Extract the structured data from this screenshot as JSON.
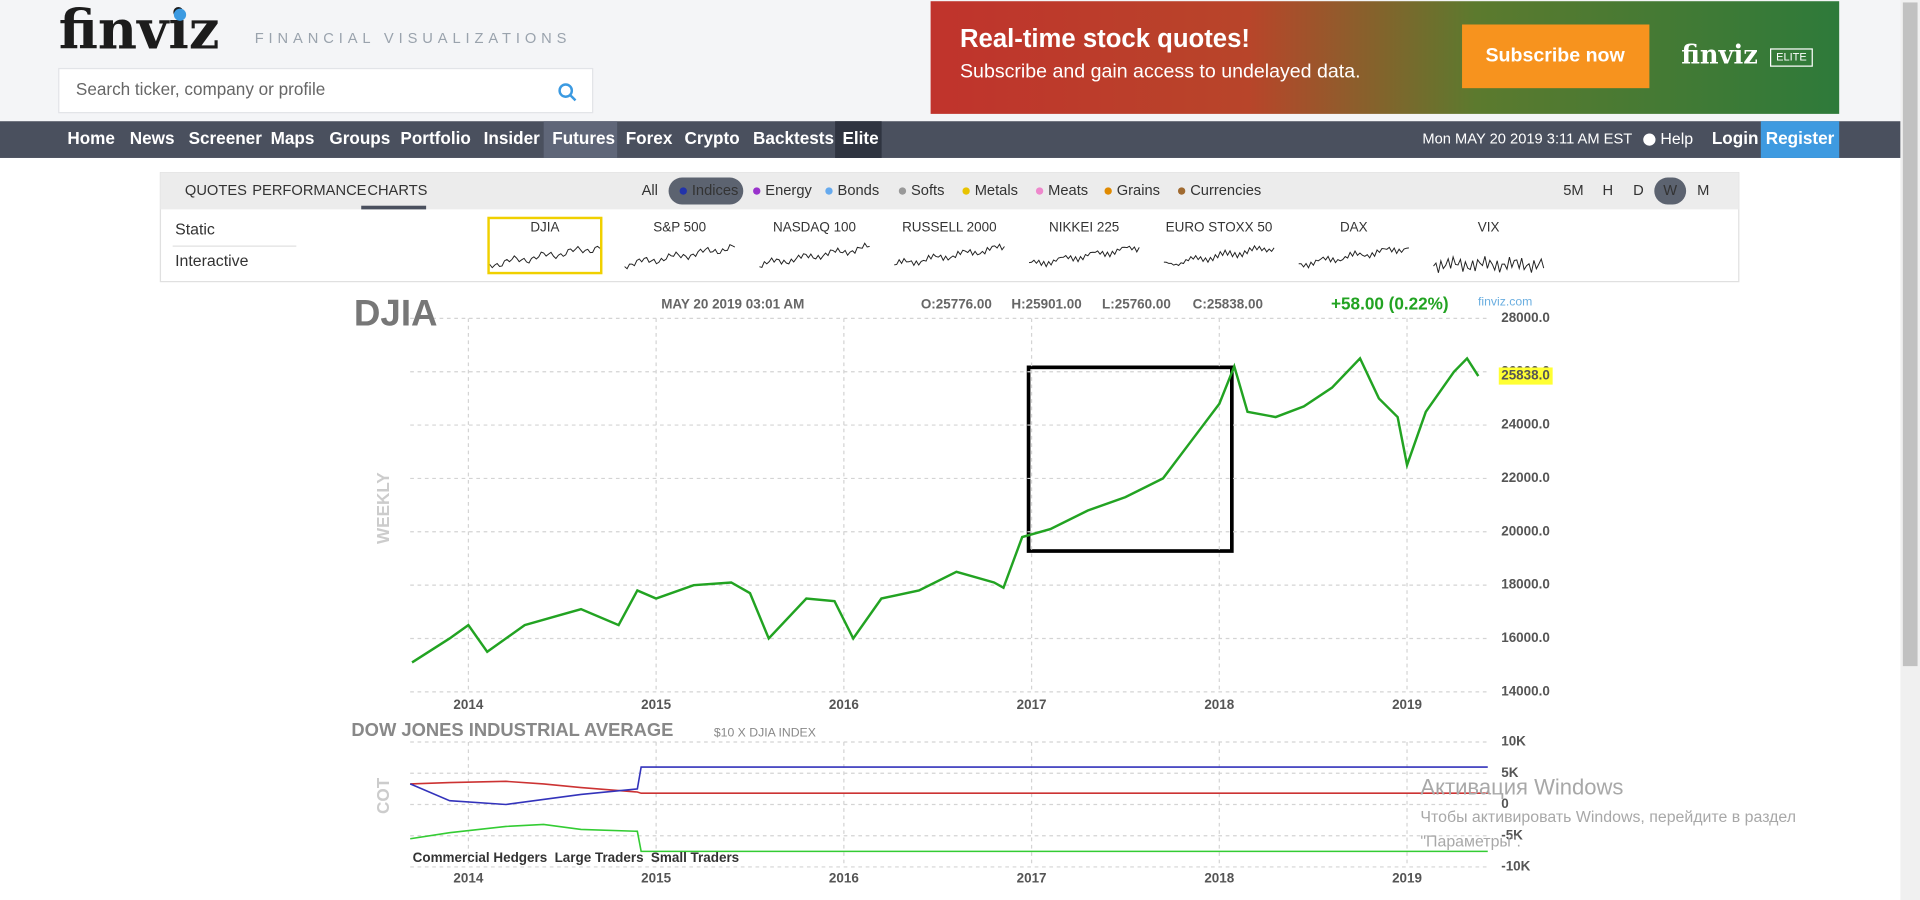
{
  "header": {
    "logo": "finviz",
    "tagline": "FINANCIAL VISUALIZATIONS",
    "search_placeholder": "Search ticker, company or profile",
    "ad": {
      "headline": "Real-time stock quotes!",
      "subline": "Subscribe and gain access to undelayed data.",
      "button": "Subscribe now",
      "brand": "finviz",
      "badge": "ELITE"
    }
  },
  "nav": {
    "items": [
      "Home",
      "News",
      "Screener",
      "Maps",
      "Groups",
      "Portfolio",
      "Insider",
      "Futures",
      "Forex",
      "Crypto",
      "Backtests",
      "Elite"
    ],
    "datetime": "Mon MAY 20 2019 3:11 AM EST",
    "help": "Help",
    "login": "Login",
    "register": "Register"
  },
  "tabs": {
    "views": [
      "QUOTES",
      "PERFORMANCE",
      "CHARTS"
    ],
    "groups": [
      "All",
      "Indices",
      "Energy",
      "Bonds",
      "Softs",
      "Metals",
      "Meats",
      "Grains",
      "Currencies"
    ],
    "timeframes": [
      "5M",
      "H",
      "D",
      "W",
      "M"
    ]
  },
  "side": [
    "Static",
    "Interactive"
  ],
  "thumbnails": [
    "DJIA",
    "S&P 500",
    "NASDAQ 100",
    "RUSSELL 2000",
    "NIKKEI 225",
    "EURO STOXX 50",
    "DAX",
    "VIX"
  ],
  "watermark": [
    "Активация Windows",
    "Чтобы активировать Windows, перейдите в раздел",
    "\"Параметры\"."
  ],
  "chart_data": [
    {
      "type": "line",
      "title": "DJIA",
      "timestamp": "MAY 20 2019 03:01 AM",
      "open": "O:25776.00",
      "high": "H:25901.00",
      "low": "L:25760.00",
      "close": "C:25838.00",
      "change": "+58.00 (0.22%)",
      "source": "finviz.com",
      "y_label": "WEEKLY",
      "price_tag": "25838.0",
      "color": "#22a322",
      "x": [
        2013.7,
        2013.9,
        2014.0,
        2014.1,
        2014.3,
        2014.5,
        2014.6,
        2014.8,
        2014.9,
        2015.0,
        2015.2,
        2015.4,
        2015.5,
        2015.6,
        2015.8,
        2015.95,
        2016.05,
        2016.2,
        2016.4,
        2016.6,
        2016.8,
        2016.85,
        2016.95,
        2017.1,
        2017.3,
        2017.5,
        2017.7,
        2017.85,
        2018.0,
        2018.08,
        2018.15,
        2018.3,
        2018.45,
        2018.6,
        2018.75,
        2018.85,
        2018.95,
        2019.0,
        2019.1,
        2019.25,
        2019.32,
        2019.38
      ],
      "values": [
        15100,
        16000,
        16500,
        15500,
        16500,
        16900,
        17100,
        16500,
        17800,
        17500,
        18000,
        18100,
        17700,
        16000,
        17500,
        17400,
        16000,
        17500,
        17800,
        18500,
        18100,
        17900,
        19800,
        20100,
        20800,
        21300,
        22000,
        23400,
        24800,
        26200,
        24500,
        24300,
        24700,
        25400,
        26500,
        25000,
        24300,
        22500,
        24500,
        26000,
        26500,
        25838
      ],
      "xlim": [
        2013.69,
        2019.43
      ],
      "xticks": [
        2014,
        2015,
        2016,
        2017,
        2018,
        2019
      ],
      "ylim": [
        14000,
        28000
      ],
      "yticks": [
        {
          "value": 14000,
          "label": "14000.0"
        },
        {
          "value": 16000,
          "label": "16000.0"
        },
        {
          "value": 18000,
          "label": "18000.0"
        },
        {
          "value": 20000,
          "label": "20000.0"
        },
        {
          "value": 22000,
          "label": "22000.0"
        },
        {
          "value": 24000,
          "label": "24000.0"
        },
        {
          "value": 26000,
          "label": "26000.0"
        },
        {
          "value": 28000,
          "label": "28000.0"
        }
      ],
      "grid": true
    },
    {
      "type": "line",
      "title": "DOW JONES INDUSTRIAL AVERAGE",
      "subtitle": "$10 X DJIA INDEX",
      "y_label": "COT",
      "x": [
        2013.69,
        2013.9,
        2014.2,
        2014.4,
        2014.6,
        2014.9,
        2014.92,
        2019.43
      ],
      "series": [
        {
          "name": "Commercial Hedgers",
          "color": "#33cc33",
          "values": [
            -5500,
            -4500,
            -3500,
            -3200,
            -4000,
            -4300,
            -7500,
            -7500
          ]
        },
        {
          "name": "Large Traders",
          "color": "#cc3333",
          "values": [
            3300,
            3500,
            3700,
            3300,
            2700,
            2000,
            1800,
            1800
          ]
        },
        {
          "name": "Small Traders",
          "color": "#3333bb",
          "values": [
            3300,
            600,
            0,
            800,
            1600,
            2500,
            6000,
            6000
          ]
        }
      ],
      "xlim": [
        2013.69,
        2019.43
      ],
      "xticks": [
        2014,
        2015,
        2016,
        2017,
        2018,
        2019
      ],
      "ylim": [
        -10000,
        10000
      ],
      "yticks": [
        {
          "value": 10000,
          "label": "10K"
        },
        {
          "value": 5000,
          "label": "5K"
        },
        0,
        {
          "value": -5000,
          "label": "-5K"
        },
        {
          "value": -10000,
          "label": "-10K"
        }
      ],
      "grid": true
    }
  ]
}
